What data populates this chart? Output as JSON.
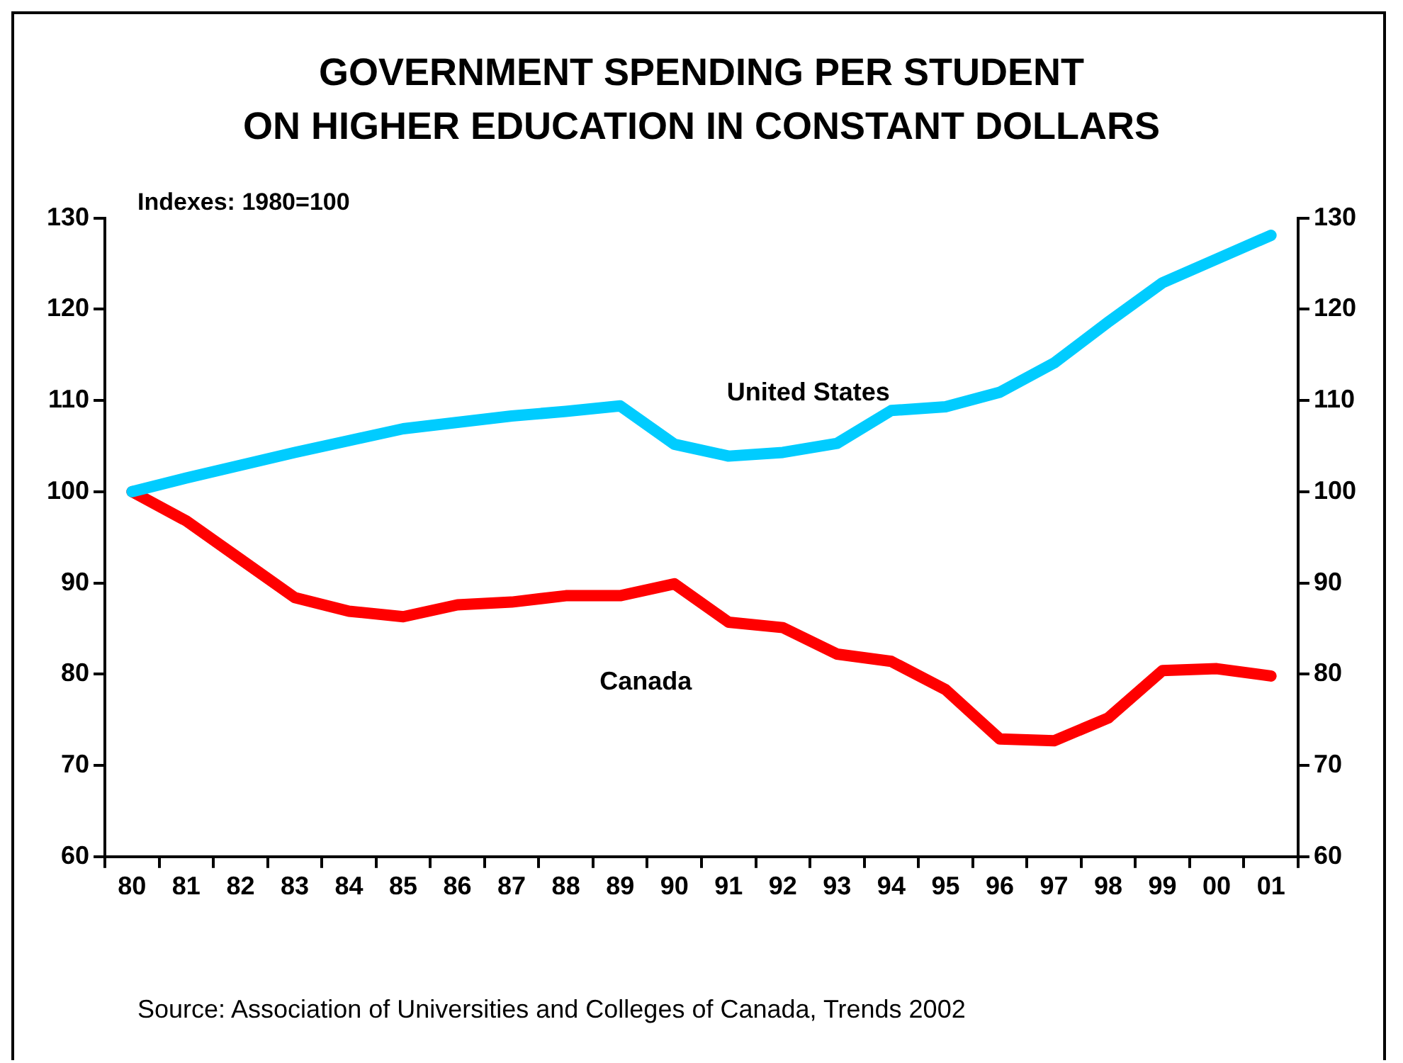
{
  "chart_data": {
    "type": "line",
    "title": "GOVERNMENT SPENDING PER STUDENT\nON HIGHER EDUCATION IN CONSTANT DOLLARS",
    "annotations": [
      "Indexes: 1980=100",
      "Source: Association of Universities and Colleges of Canada, Trends 2002"
    ],
    "categories": [
      "80",
      "81",
      "82",
      "83",
      "84",
      "85",
      "86",
      "87",
      "88",
      "89",
      "90",
      "91",
      "92",
      "93",
      "94",
      "95",
      "96",
      "97",
      "98",
      "99",
      "00",
      "01"
    ],
    "series": [
      {
        "name": "United States",
        "color": "#00ccff",
        "values": [
          100,
          101.5,
          102.9,
          104.3,
          105.6,
          106.9,
          107.6,
          108.3,
          108.8,
          109.4,
          105.2,
          103.9,
          104.3,
          105.3,
          108.9,
          109.3,
          110.9,
          114.1,
          118.6,
          122.9,
          125.5,
          128.1
        ]
      },
      {
        "name": "Canada",
        "color": "#ff0000",
        "values": [
          100,
          96.8,
          92.6,
          88.4,
          86.9,
          86.3,
          87.6,
          87.9,
          88.6,
          88.6,
          89.9,
          85.7,
          85.1,
          82.2,
          81.4,
          78.3,
          72.9,
          72.7,
          75.2,
          80.4,
          80.6,
          79.8
        ]
      }
    ],
    "ylim": [
      60,
      130
    ],
    "yticks": [
      60,
      70,
      80,
      90,
      100,
      110,
      120,
      130
    ],
    "y2lim": [
      60,
      130
    ],
    "y2ticks": [
      60,
      70,
      80,
      90,
      100,
      110,
      120,
      130
    ],
    "legend": false,
    "grid": false,
    "marker": "none",
    "line_style": "solid"
  }
}
